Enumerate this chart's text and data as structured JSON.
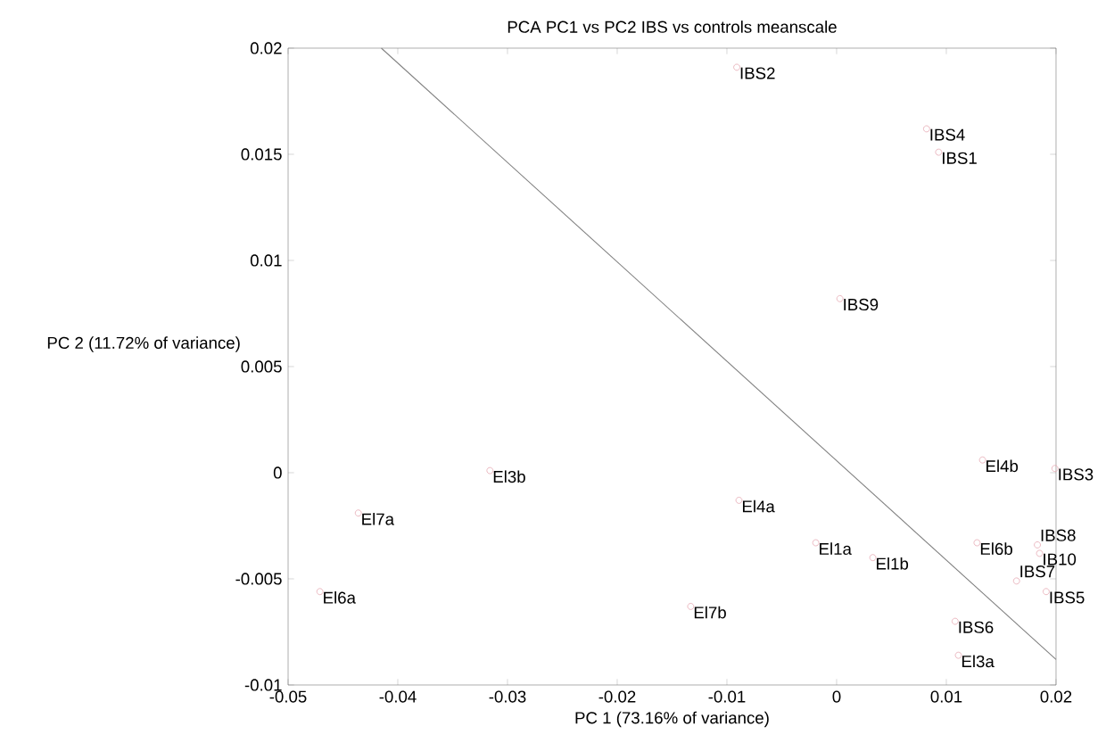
{
  "chart_data": {
    "type": "scatter",
    "title": "PCA PC1 vs PC2 IBS vs controls meanscale",
    "xlabel": "PC 1 (73.16% of variance)",
    "ylabel": "PC 2 (11.72% of variance)",
    "xlim": [
      -0.05,
      0.02
    ],
    "ylim": [
      -0.01,
      0.02
    ],
    "xticks": [
      -0.05,
      -0.04,
      -0.03,
      -0.02,
      -0.01,
      0,
      0.01,
      0.02
    ],
    "yticks": [
      -0.01,
      -0.005,
      0,
      0.005,
      0.01,
      0.015,
      0.02
    ],
    "grid": false,
    "marker": "circle",
    "series": [
      {
        "color": "#e6a8b2",
        "x": [
          -0.0091,
          0.0082,
          0.0093,
          0.0003,
          0.0133,
          0.0199,
          0.0128,
          0.0183,
          0.0185,
          0.0164,
          0.0191,
          0.0108,
          0.0111,
          -0.0316,
          -0.0436,
          -0.0471,
          -0.0133,
          -0.0089,
          -0.0019,
          0.0033
        ],
        "values": [
          0.0191,
          0.0162,
          0.0151,
          0.0082,
          0.0006,
          0.0002,
          -0.0033,
          -0.0034,
          -0.0038,
          -0.0051,
          -0.0056,
          -0.007,
          -0.0086,
          0.0001,
          -0.0019,
          -0.0056,
          -0.0063,
          -0.0013,
          -0.0033,
          -0.004
        ]
      },
      {
        "type": "line",
        "color": "#808080",
        "marker": "none",
        "x": [
          -0.0415,
          0.02
        ],
        "values": [
          0.02,
          -0.0088
        ]
      }
    ],
    "annotations": [
      {
        "text": "IBS2",
        "x": -0.0091,
        "y": 0.0191
      },
      {
        "text": "IBS4",
        "x": 0.0082,
        "y": 0.0162
      },
      {
        "text": "IBS1",
        "x": 0.0093,
        "y": 0.0151
      },
      {
        "text": "IBS9",
        "x": 0.0003,
        "y": 0.0082
      },
      {
        "text": "El4b",
        "x": 0.0133,
        "y": 0.0006
      },
      {
        "text": "IBS3",
        "x": 0.0199,
        "y": 0.0002
      },
      {
        "text": "El6b",
        "x": 0.0128,
        "y": -0.0033
      },
      {
        "text": "IBS8",
        "x": 0.0183,
        "y": -0.0034
      },
      {
        "text": "IB10",
        "x": 0.0185,
        "y": -0.0038
      },
      {
        "text": "IBS7",
        "x": 0.0164,
        "y": -0.0051
      },
      {
        "text": "IBS5",
        "x": 0.0191,
        "y": -0.0056
      },
      {
        "text": "IBS6",
        "x": 0.0108,
        "y": -0.007
      },
      {
        "text": "El3a",
        "x": 0.0111,
        "y": -0.0086
      },
      {
        "text": "El3b",
        "x": -0.0316,
        "y": 0.0001
      },
      {
        "text": "El7a",
        "x": -0.0436,
        "y": -0.0019
      },
      {
        "text": "El6a",
        "x": -0.0471,
        "y": -0.0056
      },
      {
        "text": "El7b",
        "x": -0.0133,
        "y": -0.0063
      },
      {
        "text": "El4a",
        "x": -0.0089,
        "y": -0.0013
      },
      {
        "text": "El1a",
        "x": -0.0019,
        "y": -0.0033
      },
      {
        "text": "El1b",
        "x": 0.0033,
        "y": -0.004
      }
    ]
  }
}
